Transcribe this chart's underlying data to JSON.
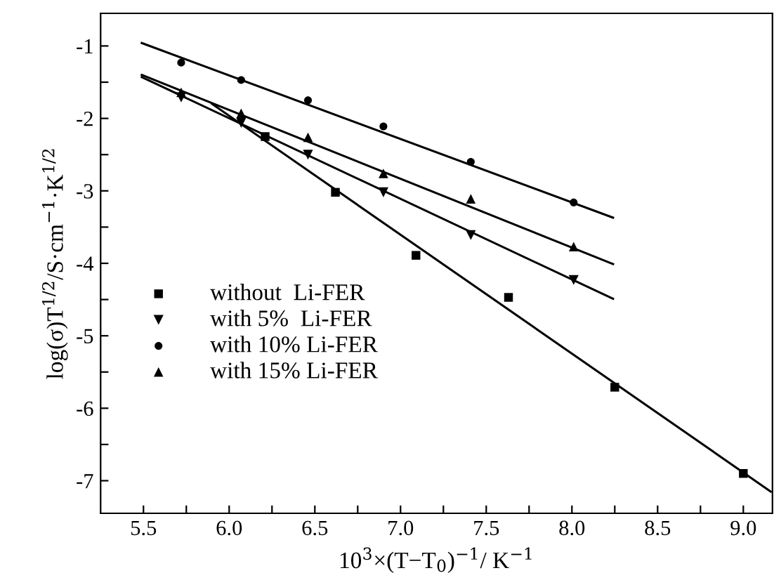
{
  "chart_data": {
    "type": "scatter",
    "xlabel": "10$^{3}$×(T−T$_{0}$)$^{−1}$/ K$^{−1}$",
    "ylabel": "log(σ)T$^{1/2}$/S·cm$^{−1}$·K$^{1/2}$",
    "xlim": [
      5.25,
      9.17
    ],
    "ylim": [
      -7.45,
      -0.55
    ],
    "xticks": [
      5.5,
      {
        "value": 5.75,
        "label": null
      },
      {
        "value": 6,
        "label": "6.0"
      },
      {
        "value": 6.25,
        "label": null
      },
      6.5,
      {
        "value": 6.75,
        "label": null
      },
      {
        "value": 7,
        "label": "7.0"
      },
      {
        "value": 7.25,
        "label": null
      },
      7.5,
      {
        "value": 7.75,
        "label": null
      },
      {
        "value": 8,
        "label": "8.0"
      },
      {
        "value": 8.25,
        "label": null
      },
      8.5,
      {
        "value": 8.75,
        "label": null
      },
      {
        "value": 9,
        "label": "9.0"
      }
    ],
    "yticks": [
      -1,
      {
        "value": -1.5,
        "label": null
      },
      -2,
      {
        "value": -2.5,
        "label": null
      },
      -3,
      {
        "value": -3.5,
        "label": null
      },
      -4,
      {
        "value": -4.5,
        "label": null
      },
      -5,
      {
        "value": -5.5,
        "label": null
      },
      -6,
      {
        "value": -6.5,
        "label": null
      },
      -7
    ],
    "grid": false,
    "legend": "left",
    "series": [
      {
        "name": "without  Li-FER",
        "color": "#000000",
        "marker": "square",
        "x": [
          6.21,
          6.62,
          7.09,
          7.63,
          8.25,
          9.0
        ],
        "values": [
          -2.25,
          -3.02,
          -3.89,
          -4.47,
          -5.71,
          -6.9
        ]
      },
      {
        "name": "with 5%  Li-FER",
        "color": "#000000",
        "marker": "triangle_down",
        "x": [
          5.72,
          6.07,
          6.46,
          6.9,
          7.41,
          8.01
        ],
        "values": [
          -1.71,
          -2.06,
          -2.5,
          -3.02,
          -3.61,
          -4.23
        ]
      },
      {
        "name": "with 10% Li-FER",
        "color": "#000000",
        "marker": "circle",
        "x": [
          5.72,
          6.07,
          6.46,
          6.9,
          7.41,
          8.01
        ],
        "values": [
          -1.23,
          -1.47,
          -1.75,
          -2.11,
          -2.6,
          -3.16
        ]
      },
      {
        "name": "with 15% Li-FER",
        "color": "#000000",
        "marker": "triangle",
        "x": [
          5.72,
          6.07,
          6.46,
          6.9,
          7.41,
          8.01
        ],
        "values": [
          -1.64,
          -1.93,
          -2.26,
          -2.76,
          -3.11,
          -3.77
        ]
      },
      {
        "type": "line",
        "color": "#000000",
        "marker": "none",
        "line_style": "solid",
        "x": [
          5.9,
          9.16
        ],
        "values": [
          -1.8,
          -7.15
        ]
      },
      {
        "type": "line",
        "color": "#000000",
        "marker": "none",
        "line_style": "solid",
        "x": [
          5.49,
          8.24
        ],
        "values": [
          -1.43,
          -4.49
        ]
      },
      {
        "type": "line",
        "color": "#000000",
        "marker": "none",
        "line_style": "solid",
        "x": [
          5.49,
          8.24
        ],
        "values": [
          -0.96,
          -3.37
        ]
      },
      {
        "type": "line",
        "color": "#000000",
        "marker": "none",
        "line_style": "solid",
        "x": [
          5.49,
          8.24
        ],
        "values": [
          -1.4,
          -4.01
        ]
      }
    ]
  }
}
